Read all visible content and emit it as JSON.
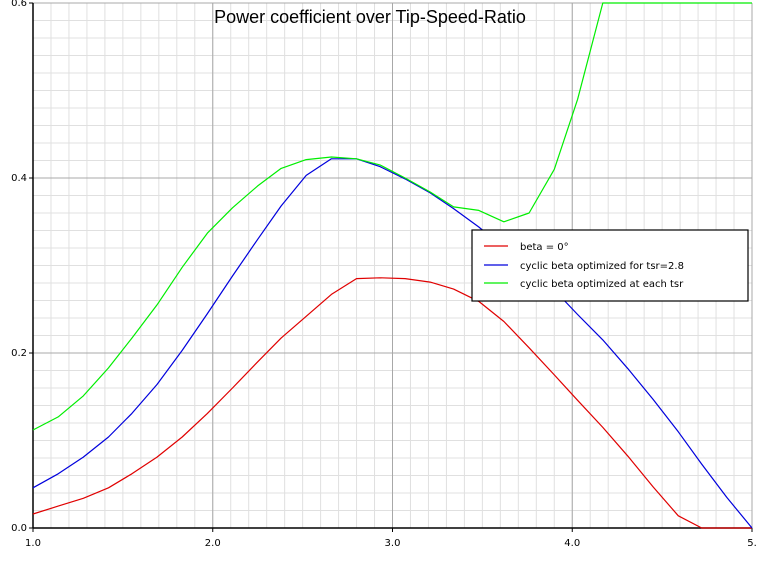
{
  "chart_data": {
    "type": "line",
    "title": "Power coefficient over Tip-Speed-Ratio",
    "xlabel": "",
    "ylabel": "",
    "xlim": [
      1.0,
      5.0
    ],
    "ylim": [
      0.0,
      0.6
    ],
    "x_ticks": [
      1.0,
      2.0,
      3.0,
      4.0,
      5.0
    ],
    "x_tick_labels": [
      "1.0",
      "2.0",
      "3.0",
      "4.0",
      "5."
    ],
    "y_ticks": [
      0.0,
      0.2,
      0.4,
      0.6
    ],
    "y_tick_labels": [
      "0.0",
      "0.2",
      "0.4",
      "0.6"
    ],
    "grid": true,
    "legend_position": "right",
    "series": [
      {
        "name": "beta = 0°",
        "color": "#e00000",
        "x": [
          1.0,
          1.14,
          1.28,
          1.42,
          1.55,
          1.69,
          1.83,
          1.97,
          2.11,
          2.25,
          2.38,
          2.52,
          2.66,
          2.8,
          2.93,
          3.07,
          3.21,
          3.34,
          3.48,
          3.62,
          3.76,
          3.9,
          4.03,
          4.17,
          4.31,
          4.45,
          4.59,
          4.72,
          4.86,
          5.0
        ],
        "y": [
          0.016,
          0.025,
          0.034,
          0.046,
          0.062,
          0.081,
          0.104,
          0.131,
          0.16,
          0.19,
          0.217,
          0.242,
          0.267,
          0.285,
          0.286,
          0.285,
          0.281,
          0.273,
          0.259,
          0.236,
          0.206,
          0.175,
          0.146,
          0.115,
          0.082,
          0.047,
          0.014,
          0.0,
          0.0,
          0.0
        ]
      },
      {
        "name": "cyclic beta optimized for tsr=2.8",
        "color": "#0000dd",
        "x": [
          1.0,
          1.14,
          1.28,
          1.42,
          1.55,
          1.69,
          1.83,
          1.97,
          2.11,
          2.25,
          2.38,
          2.52,
          2.66,
          2.8,
          2.93,
          3.07,
          3.21,
          3.34,
          3.48,
          3.62,
          3.76,
          3.9,
          4.03,
          4.17,
          4.31,
          4.45,
          4.59,
          4.72,
          4.86,
          5.0
        ],
        "y": [
          0.046,
          0.062,
          0.081,
          0.104,
          0.131,
          0.164,
          0.203,
          0.245,
          0.288,
          0.33,
          0.368,
          0.403,
          0.422,
          0.422,
          0.413,
          0.399,
          0.383,
          0.365,
          0.344,
          0.32,
          0.297,
          0.272,
          0.244,
          0.215,
          0.182,
          0.147,
          0.11,
          0.073,
          0.035,
          0.0
        ]
      },
      {
        "name": "cyclic beta optimized at each tsr",
        "color": "#00ee00",
        "x": [
          1.0,
          1.14,
          1.28,
          1.42,
          1.55,
          1.69,
          1.83,
          1.97,
          2.11,
          2.25,
          2.38,
          2.52,
          2.66,
          2.8,
          2.93,
          3.07,
          3.21,
          3.34,
          3.48,
          3.62,
          3.76,
          3.9,
          4.03,
          4.17,
          4.31,
          4.45,
          4.59,
          4.72,
          4.86,
          5.0
        ],
        "y": [
          0.112,
          0.127,
          0.151,
          0.183,
          0.217,
          0.255,
          0.298,
          0.337,
          0.366,
          0.391,
          0.411,
          0.421,
          0.424,
          0.422,
          0.415,
          0.4,
          0.384,
          0.367,
          0.363,
          0.35,
          0.36,
          0.41,
          0.49,
          0.6,
          0.6,
          0.6,
          0.6,
          0.6,
          0.6,
          0.6
        ]
      }
    ]
  }
}
